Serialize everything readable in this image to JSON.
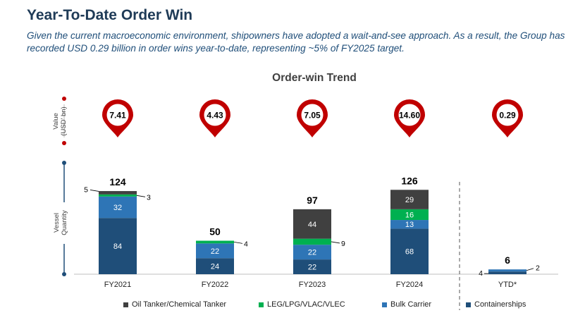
{
  "header": {
    "title": "Year-To-Date Order Win",
    "subtitle": "Given the current macroeconomic environment, shipowners have adopted a wait-and-see approach. As a result, the Group has recorded USD 0.29 billion in order wins year-to-date, representing ~5% of FY2025 target."
  },
  "colors": {
    "oil": "#404040",
    "leg": "#00b050",
    "bulk": "#2e75b6",
    "container": "#1f4e79",
    "pin": "#c00000"
  },
  "chart_data": {
    "type": "bar",
    "stacked": true,
    "title": "Order-win Trend",
    "categories": [
      "FY2021",
      "FY2022",
      "FY2023",
      "FY2024",
      "YTD*"
    ],
    "value_axis_label": "Value (USD' bn)",
    "quantity_axis_label": "Vessel Quantity",
    "values_usd_bn": [
      "7.41",
      "4.43",
      "7.05",
      "14.60",
      "0.29"
    ],
    "totals": [
      124,
      50,
      97,
      126,
      6
    ],
    "series": [
      {
        "name": "Containerships",
        "color": "#1f4e79",
        "values": [
          84,
          24,
          22,
          68,
          4
        ]
      },
      {
        "name": "Bulk Carrier",
        "color": "#2e75b6",
        "values": [
          32,
          22,
          22,
          13,
          2
        ]
      },
      {
        "name": "LEG/LPG/VLAC/VLEC",
        "color": "#00b050",
        "values": [
          3,
          4,
          9,
          16,
          0
        ]
      },
      {
        "name": "Oil Tanker/Chemical Tanker",
        "color": "#404040",
        "values": [
          5,
          0,
          44,
          29,
          0
        ]
      }
    ],
    "legend_order": [
      "Oil Tanker/Chemical Tanker",
      "LEG/LPG/VLAC/VLEC",
      "Bulk Carrier",
      "Containerships"
    ],
    "legend_position": "bottom"
  }
}
